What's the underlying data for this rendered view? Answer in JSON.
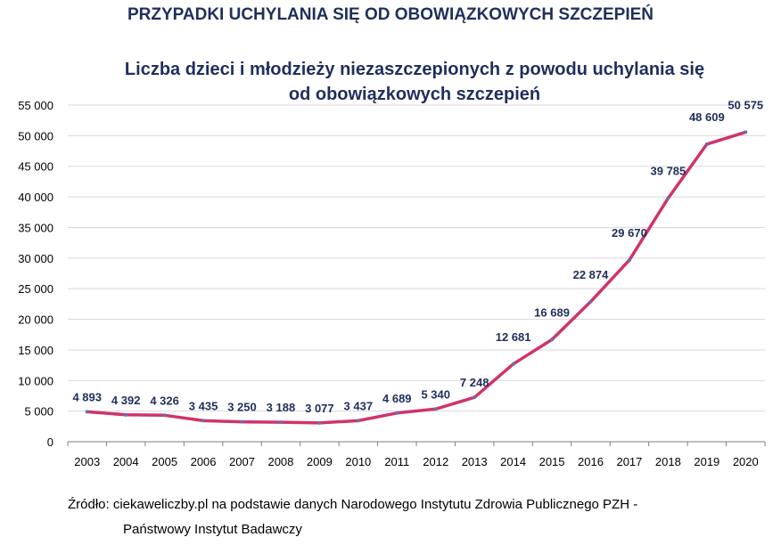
{
  "header": {
    "suptitle": "PRZYPADKI UCHYLANIA SIĘ OD OBOWIĄZKOWYCH SZCZEPIEŃ"
  },
  "footer": {
    "source_line1": "Źródło: ciekaweliczby.pl na podstawie danych Narodowego Instytutu Zdrowia Publicznego PZH -",
    "source_line2": "Państwowy Instytut Badawczy"
  },
  "colors": {
    "line": "#d0336c",
    "title": "#1f2f5c",
    "label": "#1f2f5c",
    "grid": "#d9d9d9",
    "axis": "#7f7f7f"
  },
  "chart_data": {
    "type": "line",
    "title_line1": "Liczba dzieci i młodzieży niezaszczepionych z powodu uchylania się",
    "title_line2": "od obowiązkowych szczepień",
    "xlabel": "",
    "ylabel": "",
    "ylim": [
      0,
      55000
    ],
    "y_ticks": [
      0,
      5000,
      10000,
      15000,
      20000,
      25000,
      30000,
      35000,
      40000,
      45000,
      50000,
      55000
    ],
    "y_tick_labels": [
      "0",
      "5 000",
      "10 000",
      "15 000",
      "20 000",
      "25 000",
      "30 000",
      "35 000",
      "40 000",
      "45 000",
      "50 000",
      "55 000"
    ],
    "grid": true,
    "categories": [
      "2003",
      "2004",
      "2005",
      "2006",
      "2007",
      "2008",
      "2009",
      "2010",
      "2011",
      "2012",
      "2013",
      "2014",
      "2015",
      "2016",
      "2017",
      "2018",
      "2019",
      "2020"
    ],
    "values": [
      4893,
      4392,
      4326,
      3435,
      3250,
      3188,
      3077,
      3437,
      4689,
      5340,
      7248,
      12681,
      16689,
      22874,
      29670,
      39785,
      48609,
      50575
    ],
    "value_labels": [
      "4 893",
      "4 392",
      "4 326",
      "3 435",
      "3 250",
      "3 188",
      "3 077",
      "3 437",
      "4 689",
      "5 340",
      "7 248",
      "12 681",
      "16 689",
      "22 874",
      "29 670",
      "39 785",
      "48 609",
      "50 575"
    ]
  }
}
